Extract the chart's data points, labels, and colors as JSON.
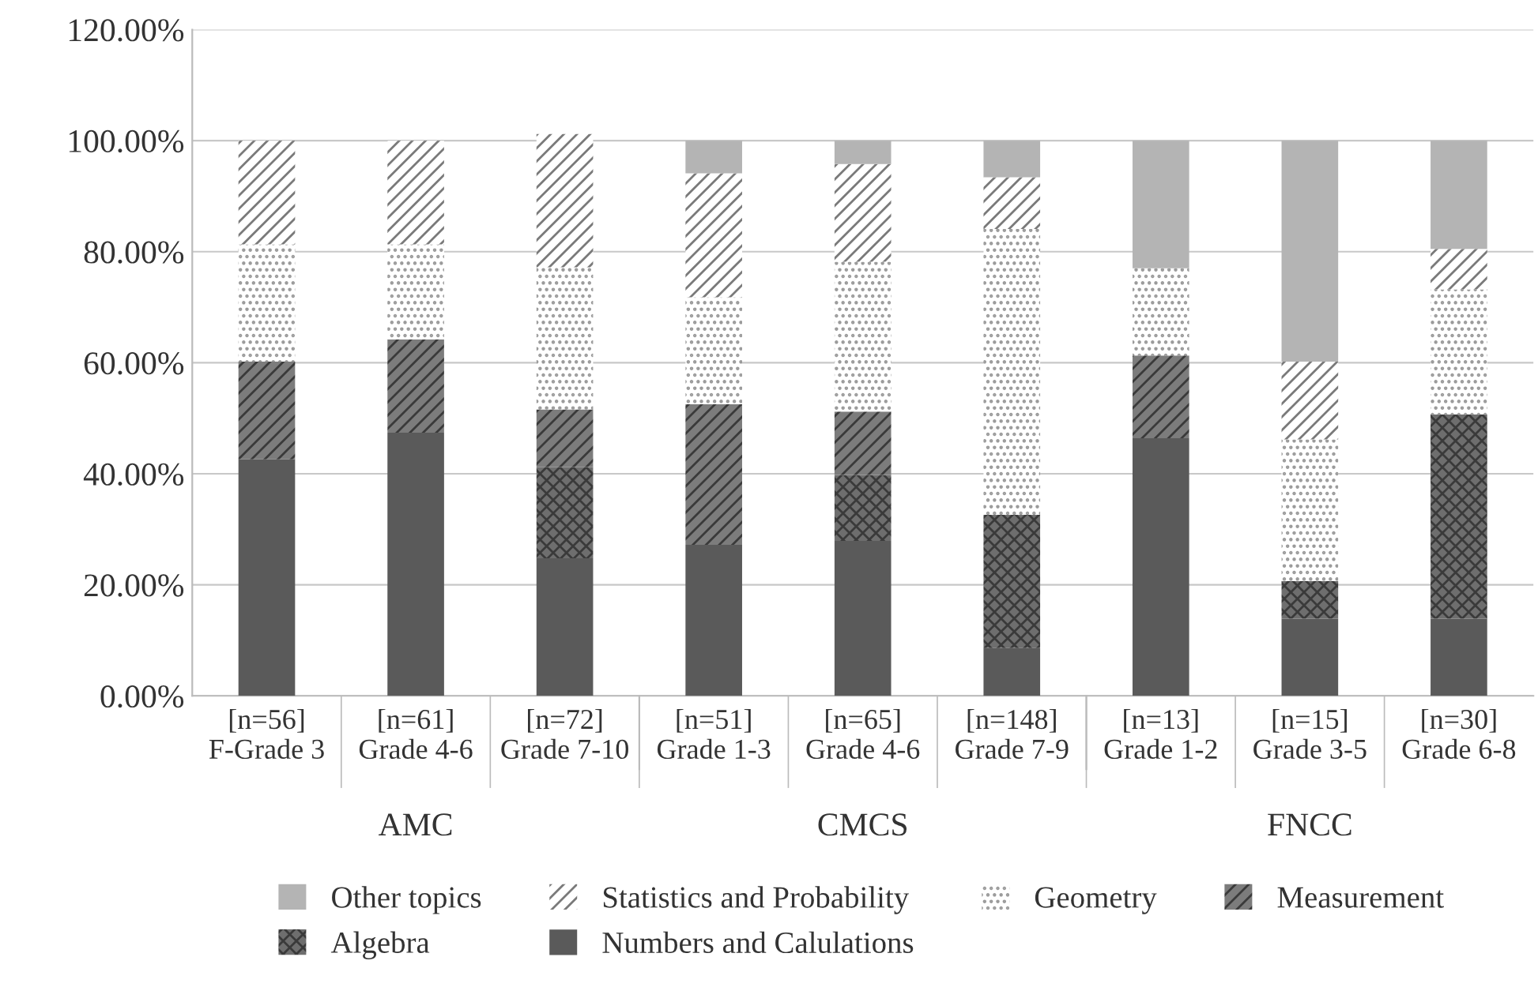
{
  "chart_data": {
    "type": "bar",
    "stacked": true,
    "categories": [
      "[n=56]\nF-Grade 3",
      "[n=61]\nGrade 4-6",
      "[n=72]\nGrade 7-10",
      "[n=51]\nGrade 1-3",
      "[n=65]\nGrade 4-6",
      "[n=148]\nGrade 7-9",
      "[n=13]\nGrade 1-2",
      "[n=15]\nGrade 3-5",
      "[n=30]\nGrade 6-8"
    ],
    "series": [
      {
        "name": "Numbers and Calulations",
        "color": "#5a5a5a",
        "values": [
          42.6,
          47.4,
          24.8,
          27.2,
          27.9,
          8.6,
          46.4,
          13.9,
          13.9
        ]
      },
      {
        "name": "Algebra",
        "color": "#6e6e6e",
        "values": [
          0,
          0,
          16.4,
          0,
          11.9,
          24.0,
          0,
          6.8,
          36.8
        ]
      },
      {
        "name": "Measurement",
        "color": "#7c7c7c",
        "values": [
          17.6,
          16.8,
          10.4,
          25.3,
          11.4,
          0,
          14.9,
          0,
          0
        ]
      },
      {
        "name": "Geometry",
        "color": "#9a9a9a",
        "values": [
          21.1,
          17.1,
          25.6,
          19.3,
          27.0,
          51.5,
          15.7,
          25.5,
          22.5
        ]
      },
      {
        "name": "Statistics and Probability",
        "color": "#7a7a7a",
        "values": [
          18.7,
          18.7,
          24.0,
          22.3,
          17.6,
          9.3,
          0,
          14.0,
          7.3
        ]
      },
      {
        "name": "Other topics",
        "color": "#b4b4b4",
        "values": [
          0,
          0,
          0,
          5.9,
          4.2,
          6.6,
          23.0,
          39.8,
          19.5
        ]
      }
    ],
    "ylim": [
      0,
      120
    ],
    "yticks": [
      {
        "value": 0,
        "label": "0.00%"
      },
      {
        "value": 20,
        "label": "20.00%"
      },
      {
        "value": 40,
        "label": "40.00%"
      },
      {
        "value": 60,
        "label": "60.00%"
      },
      {
        "value": 80,
        "label": "80.00%"
      },
      {
        "value": 100,
        "label": "100.00%"
      },
      {
        "value": 120,
        "label": "120.00%"
      }
    ],
    "grid": "y",
    "legend": "bottom",
    "annotations": [
      "AMC",
      "CMCS",
      "FNCC"
    ]
  }
}
